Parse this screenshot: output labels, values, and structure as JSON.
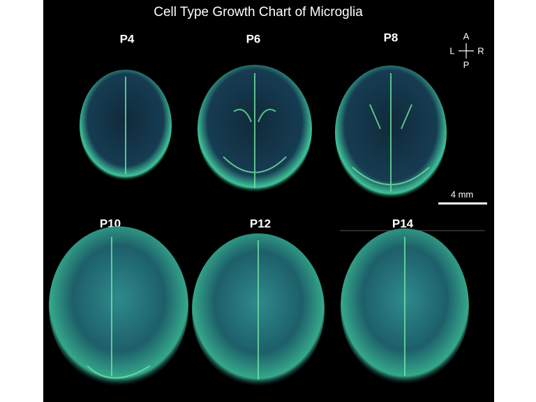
{
  "title": "Cell Type Growth Chart of Microglia",
  "panels": [
    {
      "label": "P4"
    },
    {
      "label": "P6"
    },
    {
      "label": "P8"
    },
    {
      "label": "P10"
    },
    {
      "label": "P12"
    },
    {
      "label": "P14"
    }
  ],
  "orientation": {
    "anterior": "A",
    "left": "L",
    "right": "R",
    "posterior": "P"
  },
  "scale_bar": {
    "label": "4 mm"
  }
}
